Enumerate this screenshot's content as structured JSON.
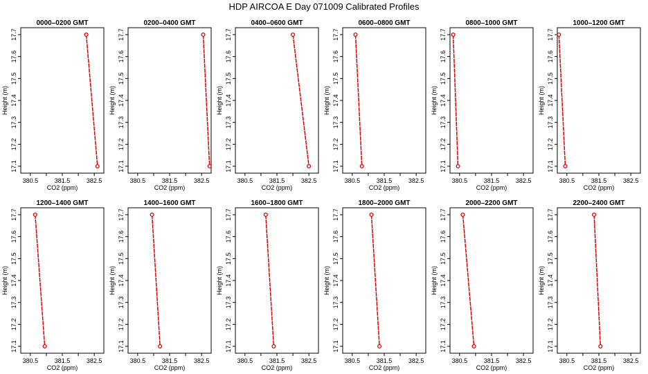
{
  "figure": {
    "title": "HDP  AIRCOA E  Day 071009  Calibrated Profiles"
  },
  "chart_data": [
    {
      "type": "line",
      "title": "0000–0200 GMT",
      "xlabel": "CO2 (ppm)",
      "ylabel": "Height (m)",
      "xlim": [
        380.2,
        382.8
      ],
      "ylim": [
        17.07,
        17.72
      ],
      "xticks": [
        "380.5",
        "381.5",
        "382.5"
      ],
      "yticks": [
        "17.1",
        "17.2",
        "17.3",
        "17.4",
        "17.5",
        "17.6",
        "17.7"
      ],
      "series": [
        {
          "x": [
            382.25,
            382.6
          ],
          "y": [
            17.7,
            17.1
          ]
        }
      ]
    },
    {
      "type": "line",
      "title": "0200–0400 GMT",
      "xlabel": "CO2 (ppm)",
      "ylabel": "Height (m)",
      "xlim": [
        380.2,
        382.8
      ],
      "ylim": [
        17.07,
        17.72
      ],
      "xticks": [
        "380.5",
        "381.5",
        "382.5"
      ],
      "yticks": [
        "17.1",
        "17.2",
        "17.3",
        "17.4",
        "17.5",
        "17.6",
        "17.7"
      ],
      "series": [
        {
          "x": [
            382.55,
            382.75
          ],
          "y": [
            17.7,
            17.1
          ]
        }
      ]
    },
    {
      "type": "line",
      "title": "0400–0600 GMT",
      "xlabel": "CO2 (ppm)",
      "ylabel": "Height (m)",
      "xlim": [
        380.2,
        382.8
      ],
      "ylim": [
        17.07,
        17.72
      ],
      "xticks": [
        "380.5",
        "381.5",
        "382.5"
      ],
      "yticks": [
        "17.1",
        "17.2",
        "17.3",
        "17.4",
        "17.5",
        "17.6",
        "17.7"
      ],
      "series": [
        {
          "x": [
            382.0,
            382.5
          ],
          "y": [
            17.7,
            17.1
          ]
        }
      ]
    },
    {
      "type": "line",
      "title": "0600–0800 GMT",
      "xlabel": "CO2 (ppm)",
      "ylabel": "Height (m)",
      "xlim": [
        380.2,
        382.8
      ],
      "ylim": [
        17.07,
        17.72
      ],
      "xticks": [
        "380.5",
        "381.5",
        "382.5"
      ],
      "yticks": [
        "17.1",
        "17.2",
        "17.3",
        "17.4",
        "17.5",
        "17.6",
        "17.7"
      ],
      "series": [
        {
          "x": [
            380.6,
            380.8
          ],
          "y": [
            17.7,
            17.1
          ]
        }
      ]
    },
    {
      "type": "line",
      "title": "0800–1000 GMT",
      "xlabel": "CO2 (ppm)",
      "ylabel": "Height (m)",
      "xlim": [
        380.2,
        382.8
      ],
      "ylim": [
        17.07,
        17.72
      ],
      "xticks": [
        "380.5",
        "381.5",
        "382.5"
      ],
      "yticks": [
        "17.1",
        "17.2",
        "17.3",
        "17.4",
        "17.5",
        "17.6",
        "17.7"
      ],
      "series": [
        {
          "x": [
            380.3,
            380.45
          ],
          "y": [
            17.7,
            17.1
          ]
        }
      ]
    },
    {
      "type": "line",
      "title": "1000–1200 GMT",
      "xlabel": "CO2 (ppm)",
      "ylabel": "Height (m)",
      "xlim": [
        380.2,
        382.8
      ],
      "ylim": [
        17.07,
        17.72
      ],
      "xticks": [
        "380.5",
        "381.5",
        "382.5"
      ],
      "yticks": [
        "17.1",
        "17.2",
        "17.3",
        "17.4",
        "17.5",
        "17.6",
        "17.7"
      ],
      "series": [
        {
          "x": [
            380.25,
            380.45
          ],
          "y": [
            17.7,
            17.1
          ]
        }
      ]
    },
    {
      "type": "line",
      "title": "1200–1400 GMT",
      "xlabel": "CO2 (ppm)",
      "ylabel": "Height (m)",
      "xlim": [
        380.2,
        382.8
      ],
      "ylim": [
        17.07,
        17.72
      ],
      "xticks": [
        "380.5",
        "381.5",
        "382.5"
      ],
      "yticks": [
        "17.1",
        "17.2",
        "17.3",
        "17.4",
        "17.5",
        "17.6",
        "17.7"
      ],
      "series": [
        {
          "x": [
            380.65,
            380.95
          ],
          "y": [
            17.7,
            17.1
          ]
        }
      ]
    },
    {
      "type": "line",
      "title": "1400–1600 GMT",
      "xlabel": "CO2 (ppm)",
      "ylabel": "Height (m)",
      "xlim": [
        380.2,
        382.8
      ],
      "ylim": [
        17.07,
        17.72
      ],
      "xticks": [
        "380.5",
        "381.5",
        "382.5"
      ],
      "yticks": [
        "17.1",
        "17.2",
        "17.3",
        "17.4",
        "17.5",
        "17.6",
        "17.7"
      ],
      "series": [
        {
          "x": [
            380.95,
            381.2
          ],
          "y": [
            17.7,
            17.1
          ]
        }
      ]
    },
    {
      "type": "line",
      "title": "1600–1800 GMT",
      "xlabel": "CO2 (ppm)",
      "ylabel": "Height (m)",
      "xlim": [
        380.2,
        382.8
      ],
      "ylim": [
        17.07,
        17.72
      ],
      "xticks": [
        "380.5",
        "381.5",
        "382.5"
      ],
      "yticks": [
        "17.1",
        "17.2",
        "17.3",
        "17.4",
        "17.5",
        "17.6",
        "17.7"
      ],
      "series": [
        {
          "x": [
            381.15,
            381.4
          ],
          "y": [
            17.7,
            17.1
          ]
        }
      ]
    },
    {
      "type": "line",
      "title": "1800–2000 GMT",
      "xlabel": "CO2 (ppm)",
      "ylabel": "Height (m)",
      "xlim": [
        380.2,
        382.8
      ],
      "ylim": [
        17.07,
        17.72
      ],
      "xticks": [
        "380.5",
        "381.5",
        "382.5"
      ],
      "yticks": [
        "17.1",
        "17.2",
        "17.3",
        "17.4",
        "17.5",
        "17.6",
        "17.7"
      ],
      "series": [
        {
          "x": [
            381.1,
            381.35
          ],
          "y": [
            17.7,
            17.1
          ]
        }
      ]
    },
    {
      "type": "line",
      "title": "2000–2200 GMT",
      "xlabel": "CO2 (ppm)",
      "ylabel": "Height (m)",
      "xlim": [
        380.2,
        382.8
      ],
      "ylim": [
        17.07,
        17.72
      ],
      "xticks": [
        "380.5",
        "381.5",
        "382.5"
      ],
      "yticks": [
        "17.1",
        "17.2",
        "17.3",
        "17.4",
        "17.5",
        "17.6",
        "17.7"
      ],
      "series": [
        {
          "x": [
            380.6,
            380.95
          ],
          "y": [
            17.7,
            17.1
          ]
        }
      ]
    },
    {
      "type": "line",
      "title": "2200–2400 GMT",
      "xlabel": "CO2 (ppm)",
      "ylabel": "Height (m)",
      "xlim": [
        380.2,
        382.8
      ],
      "ylim": [
        17.07,
        17.72
      ],
      "xticks": [
        "380.5",
        "381.5",
        "382.5"
      ],
      "yticks": [
        "17.1",
        "17.2",
        "17.3",
        "17.4",
        "17.5",
        "17.6",
        "17.7"
      ],
      "series": [
        {
          "x": [
            381.35,
            381.55
          ],
          "y": [
            17.7,
            17.1
          ]
        }
      ]
    }
  ],
  "style": {
    "line_color": "#dd0000",
    "marker_color": "#dd0000",
    "axis_color": "#000000"
  }
}
